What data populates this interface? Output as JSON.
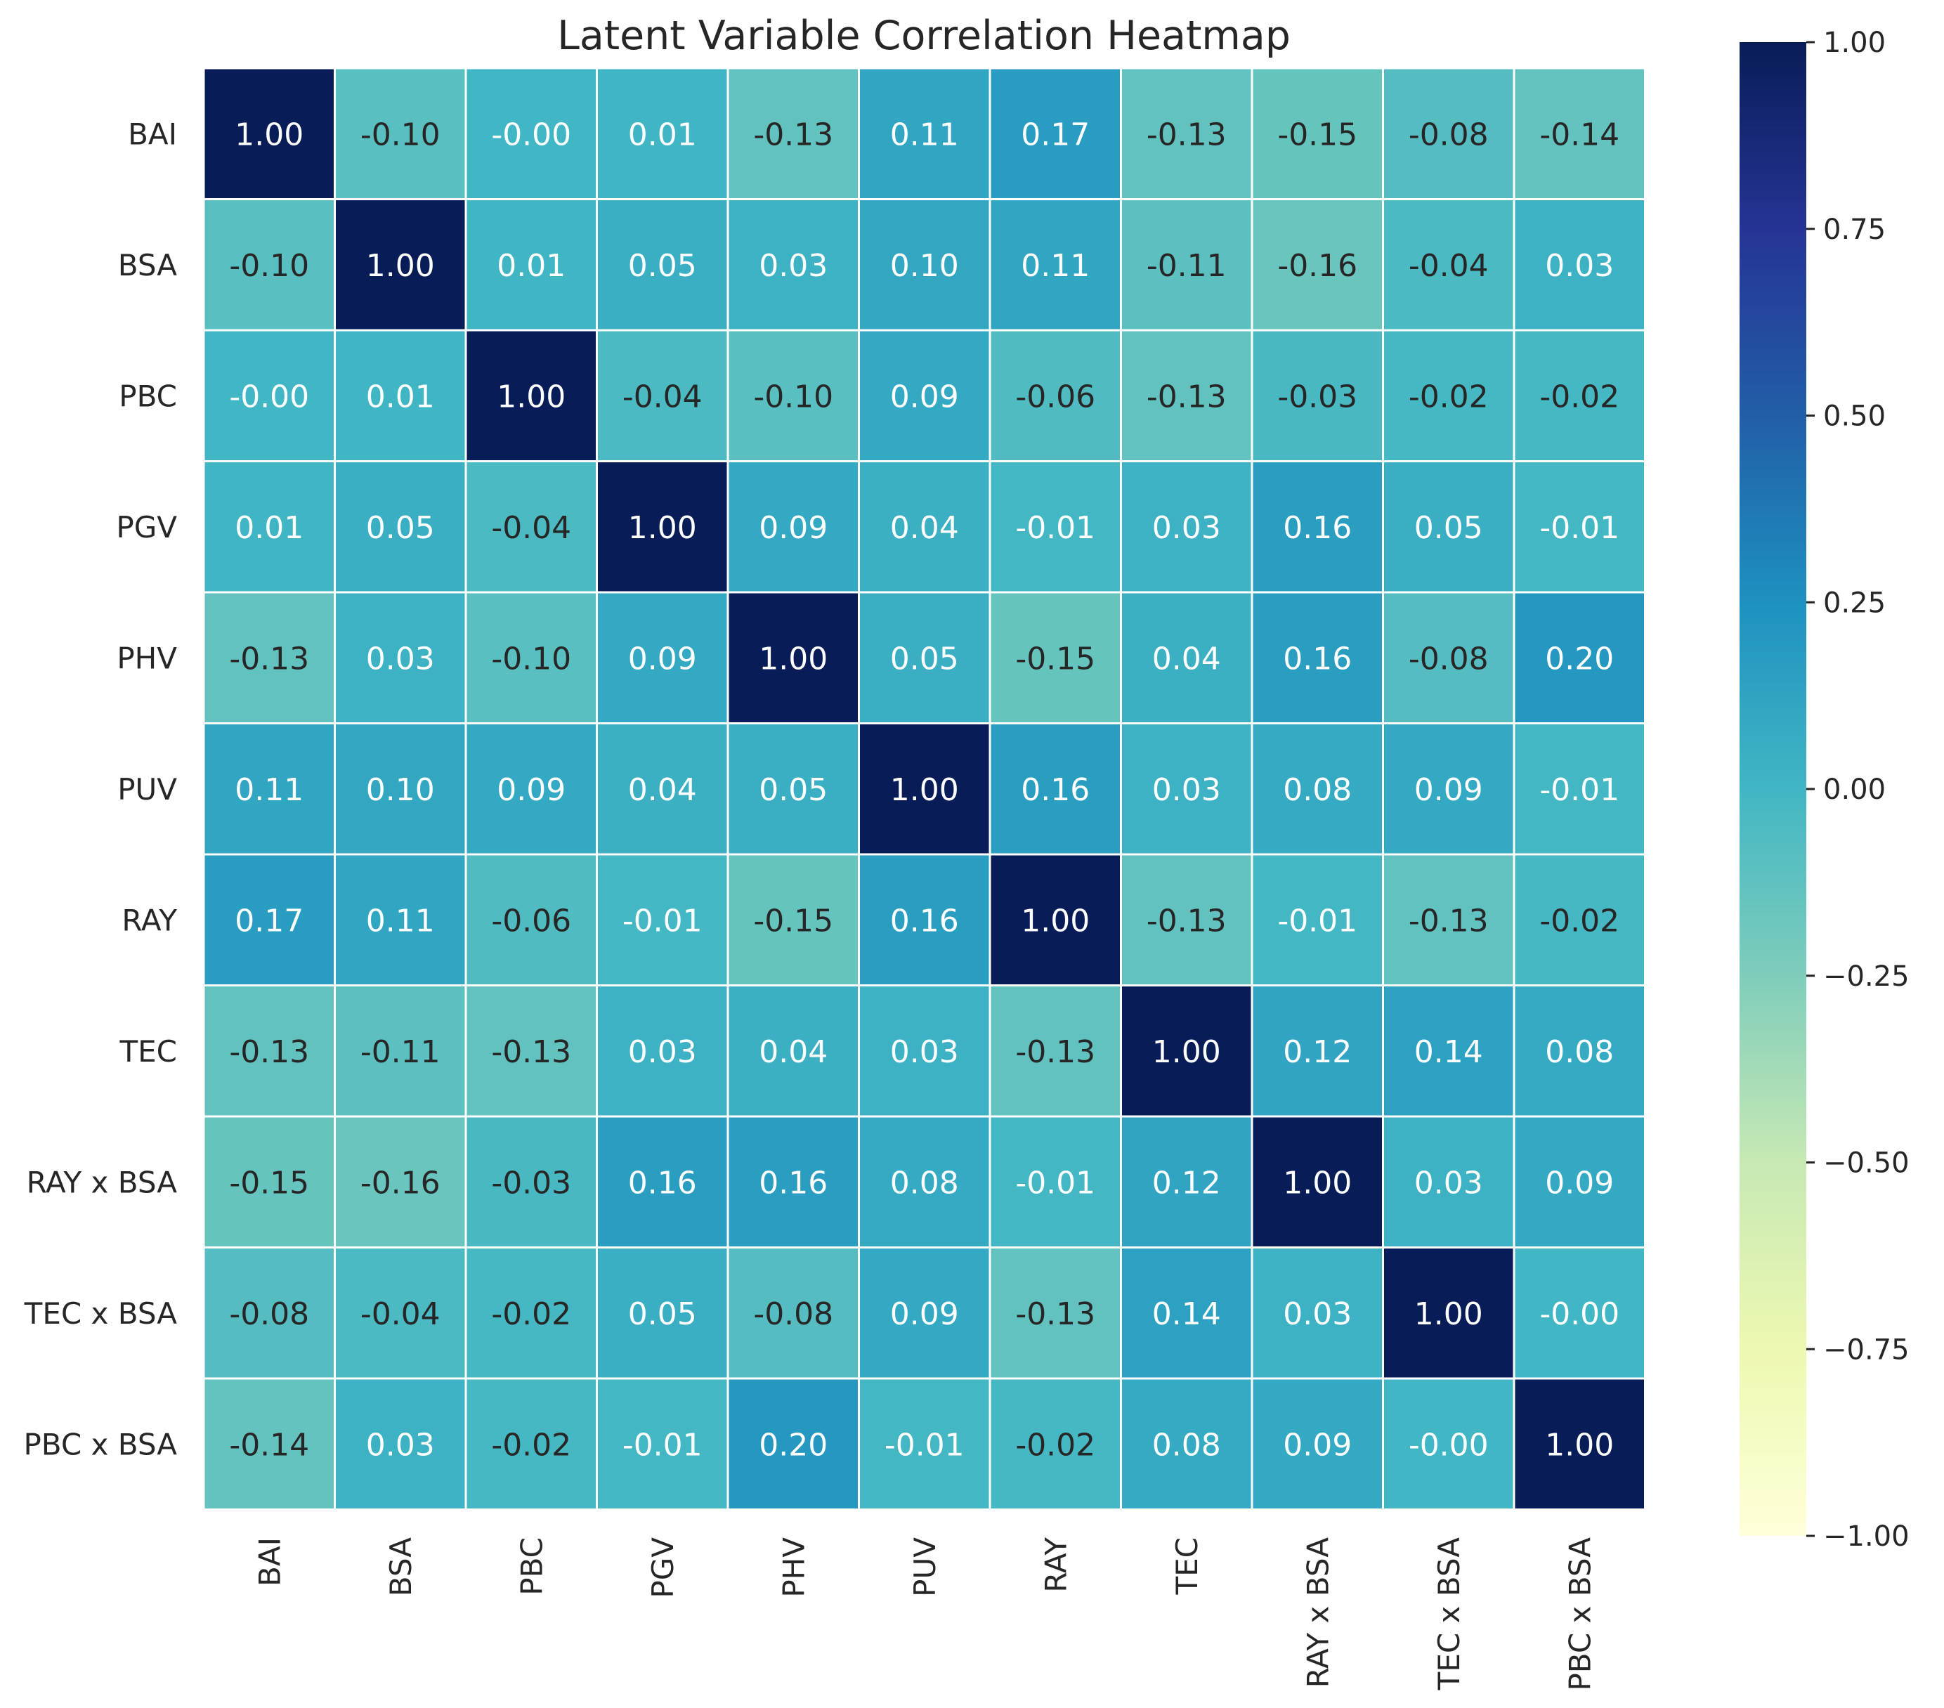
{
  "chart_data": {
    "type": "heatmap",
    "title": "Latent Variable Correlation Heatmap",
    "xlabel": "",
    "ylabel": "",
    "rows": [
      "BAI",
      "BSA",
      "PBC",
      "PGV",
      "PHV",
      "PUV",
      "RAY",
      "TEC",
      "RAY x BSA",
      "TEC x BSA",
      "PBC x BSA"
    ],
    "columns": [
      "BAI",
      "BSA",
      "PBC",
      "PGV",
      "PHV",
      "PUV",
      "RAY",
      "TEC",
      "RAY x BSA",
      "TEC x BSA",
      "PBC x BSA"
    ],
    "values": [
      [
        1.0,
        -0.1,
        -0.0,
        0.01,
        -0.13,
        0.11,
        0.17,
        -0.13,
        -0.15,
        -0.08,
        -0.14
      ],
      [
        -0.1,
        1.0,
        0.01,
        0.05,
        0.03,
        0.1,
        0.11,
        -0.11,
        -0.16,
        -0.04,
        0.03
      ],
      [
        -0.0,
        0.01,
        1.0,
        -0.04,
        -0.1,
        0.09,
        -0.06,
        -0.13,
        -0.03,
        -0.02,
        -0.02
      ],
      [
        0.01,
        0.05,
        -0.04,
        1.0,
        0.09,
        0.04,
        -0.01,
        0.03,
        0.16,
        0.05,
        -0.01
      ],
      [
        -0.13,
        0.03,
        -0.1,
        0.09,
        1.0,
        0.05,
        -0.15,
        0.04,
        0.16,
        -0.08,
        0.2
      ],
      [
        0.11,
        0.1,
        0.09,
        0.04,
        0.05,
        1.0,
        0.16,
        0.03,
        0.08,
        0.09,
        -0.01
      ],
      [
        0.17,
        0.11,
        -0.06,
        -0.01,
        -0.15,
        0.16,
        1.0,
        -0.13,
        -0.01,
        -0.13,
        -0.02
      ],
      [
        -0.13,
        -0.11,
        -0.13,
        0.03,
        0.04,
        0.03,
        -0.13,
        1.0,
        0.12,
        0.14,
        0.08
      ],
      [
        -0.15,
        -0.16,
        -0.03,
        0.16,
        0.16,
        0.08,
        -0.01,
        0.12,
        1.0,
        0.03,
        0.09
      ],
      [
        -0.08,
        -0.04,
        -0.02,
        0.05,
        -0.08,
        0.09,
        -0.13,
        0.14,
        0.03,
        1.0,
        -0.0
      ],
      [
        -0.14,
        0.03,
        -0.02,
        -0.01,
        0.2,
        -0.01,
        -0.02,
        0.08,
        0.09,
        -0.0,
        1.0
      ]
    ],
    "cell_labels": [
      [
        "1.00",
        "-0.10",
        "-0.00",
        "0.01",
        "-0.13",
        "0.11",
        "0.17",
        "-0.13",
        "-0.15",
        "-0.08",
        "-0.14"
      ],
      [
        "-0.10",
        "1.00",
        "0.01",
        "0.05",
        "0.03",
        "0.10",
        "0.11",
        "-0.11",
        "-0.16",
        "-0.04",
        "0.03"
      ],
      [
        "-0.00",
        "0.01",
        "1.00",
        "-0.04",
        "-0.10",
        "0.09",
        "-0.06",
        "-0.13",
        "-0.03",
        "-0.02",
        "-0.02"
      ],
      [
        "0.01",
        "0.05",
        "-0.04",
        "1.00",
        "0.09",
        "0.04",
        "-0.01",
        "0.03",
        "0.16",
        "0.05",
        "-0.01"
      ],
      [
        "-0.13",
        "0.03",
        "-0.10",
        "0.09",
        "1.00",
        "0.05",
        "-0.15",
        "0.04",
        "0.16",
        "-0.08",
        "0.20"
      ],
      [
        "0.11",
        "0.10",
        "0.09",
        "0.04",
        "0.05",
        "1.00",
        "0.16",
        "0.03",
        "0.08",
        "0.09",
        "-0.01"
      ],
      [
        "0.17",
        "0.11",
        "-0.06",
        "-0.01",
        "-0.15",
        "0.16",
        "1.00",
        "-0.13",
        "-0.01",
        "-0.13",
        "-0.02"
      ],
      [
        "-0.13",
        "-0.11",
        "-0.13",
        "0.03",
        "0.04",
        "0.03",
        "-0.13",
        "1.00",
        "0.12",
        "0.14",
        "0.08"
      ],
      [
        "-0.15",
        "-0.16",
        "-0.03",
        "0.16",
        "0.16",
        "0.08",
        "-0.01",
        "0.12",
        "1.00",
        "0.03",
        "0.09"
      ],
      [
        "-0.08",
        "-0.04",
        "-0.02",
        "0.05",
        "-0.08",
        "0.09",
        "-0.13",
        "0.14",
        "0.03",
        "1.00",
        "-0.00"
      ],
      [
        "-0.14",
        "0.03",
        "-0.02",
        "-0.01",
        "0.20",
        "-0.01",
        "-0.02",
        "0.08",
        "0.09",
        "-0.00",
        "1.00"
      ]
    ],
    "value_range": [
      -1.0,
      1.0
    ],
    "colormap": "YlGnBu",
    "colorbar": {
      "ticks": [
        1.0,
        0.75,
        0.5,
        0.25,
        0.0,
        -0.25,
        -0.5,
        -0.75,
        -1.0
      ],
      "tick_labels": [
        "1.00",
        "0.75",
        "0.50",
        "0.25",
        "0.00",
        "−0.25",
        "−0.50",
        "−0.75",
        "−1.00"
      ],
      "position": "right"
    },
    "grid": false,
    "cell_separator_color": "#ffffff"
  }
}
